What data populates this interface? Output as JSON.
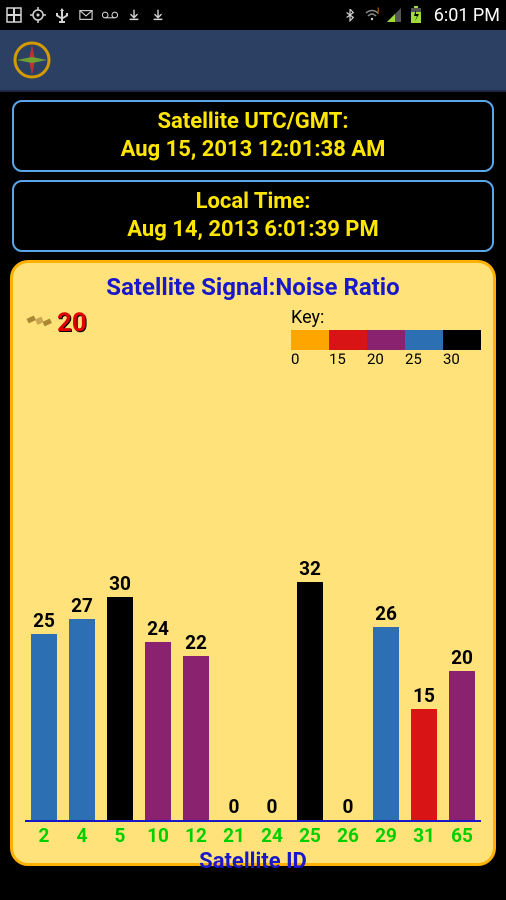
{
  "status_bar": {
    "clock": "6:01 PM",
    "icons_left": [
      "plus",
      "target",
      "usb",
      "mail",
      "voicemail",
      "download",
      "download"
    ],
    "icons_right": [
      "bluetooth",
      "wifi-alert",
      "signal",
      "battery"
    ]
  },
  "info_cards": {
    "utc": {
      "label": "Satellite UTC/GMT:",
      "value": "Aug 15, 2013 12:01:38 AM"
    },
    "local": {
      "label": "Local Time:",
      "value": "Aug 14, 2013 6:01:39 PM"
    }
  },
  "chart": {
    "type": "bar",
    "title": "Satellite Signal:Noise Ratio",
    "sat_count": "20",
    "key_label": "Key:",
    "key_thresholds": [
      {
        "value": 0,
        "color": "#ffa500"
      },
      {
        "value": 15,
        "color": "#d81414"
      },
      {
        "value": 20,
        "color": "#8a2270"
      },
      {
        "value": 25,
        "color": "#2c6fb3"
      },
      {
        "value": 30,
        "color": "#000000"
      }
    ],
    "x_title": "Satellite ID",
    "y_max": 60,
    "bar_data": [
      {
        "id": "2",
        "value": 25,
        "color": "#2c6fb3"
      },
      {
        "id": "4",
        "value": 27,
        "color": "#2c6fb3"
      },
      {
        "id": "5",
        "value": 30,
        "color": "#000000"
      },
      {
        "id": "10",
        "value": 24,
        "color": "#8a2270"
      },
      {
        "id": "12",
        "value": 22,
        "color": "#8a2270"
      },
      {
        "id": "21",
        "value": 0,
        "color": "#ffa500"
      },
      {
        "id": "24",
        "value": 0,
        "color": "#ffa500"
      },
      {
        "id": "25",
        "value": 32,
        "color": "#000000"
      },
      {
        "id": "26",
        "value": 0,
        "color": "#ffa500"
      },
      {
        "id": "29",
        "value": 26,
        "color": "#2c6fb3"
      },
      {
        "id": "31",
        "value": 15,
        "color": "#d81414"
      },
      {
        "id": "65",
        "value": 20,
        "color": "#8a2270"
      }
    ],
    "background_color": "#ffe27a",
    "border_color": "#ffb000",
    "axis_color": "#1818c8",
    "x_label_color": "#00d000",
    "title_color": "#1818c8"
  }
}
